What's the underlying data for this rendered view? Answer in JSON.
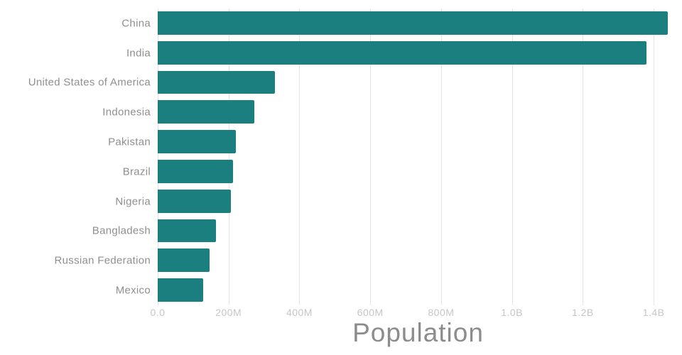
{
  "chart_data": {
    "type": "bar",
    "orientation": "horizontal",
    "title": "Population",
    "categories": [
      "China",
      "India",
      "United States of America",
      "Indonesia",
      "Pakistan",
      "Brazil",
      "Nigeria",
      "Bangladesh",
      "Russian Federation",
      "Mexico"
    ],
    "values": [
      1440000000,
      1380000000,
      331000000,
      273000000,
      220000000,
      212000000,
      206000000,
      165000000,
      146000000,
      129000000
    ],
    "x_ticks": [
      {
        "value": 0,
        "label": "0.0"
      },
      {
        "value": 200000000,
        "label": "200M"
      },
      {
        "value": 400000000,
        "label": "400M"
      },
      {
        "value": 600000000,
        "label": "600M"
      },
      {
        "value": 800000000,
        "label": "800M"
      },
      {
        "value": 1000000000,
        "label": "1.0B"
      },
      {
        "value": 1200000000,
        "label": "1.2B"
      },
      {
        "value": 1400000000,
        "label": "1.4B"
      }
    ],
    "xlim": [
      0,
      1470000000
    ],
    "grid": true,
    "legend": "none",
    "bar_color": "#1a7f7e",
    "category_label_color": "#8f8f8f",
    "tick_label_color": "#c6c6c6",
    "title_color": "#8c8c8c",
    "gridline_color": "#e4e4e4"
  }
}
